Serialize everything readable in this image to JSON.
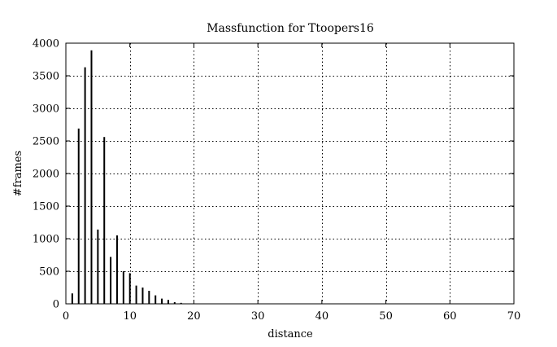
{
  "chart_data": {
    "type": "bar",
    "title": "Massfunction for Ttoopers16",
    "xlabel": "distance",
    "ylabel": "#frames",
    "xlim": [
      0,
      70
    ],
    "ylim": [
      0,
      4000
    ],
    "xticks": [
      0,
      10,
      20,
      30,
      40,
      50,
      60,
      70
    ],
    "yticks": [
      0,
      500,
      1000,
      1500,
      2000,
      2500,
      3000,
      3500,
      4000
    ],
    "grid": true,
    "legend": "none",
    "bar_color": "#000000",
    "points": [
      {
        "x": 1,
        "y": 160
      },
      {
        "x": 2,
        "y": 2690
      },
      {
        "x": 3,
        "y": 3630
      },
      {
        "x": 4,
        "y": 3890
      },
      {
        "x": 5,
        "y": 1140
      },
      {
        "x": 6,
        "y": 2560
      },
      {
        "x": 7,
        "y": 720
      },
      {
        "x": 8,
        "y": 1050
      },
      {
        "x": 9,
        "y": 500
      },
      {
        "x": 10,
        "y": 470
      },
      {
        "x": 11,
        "y": 280
      },
      {
        "x": 12,
        "y": 250
      },
      {
        "x": 13,
        "y": 200
      },
      {
        "x": 14,
        "y": 130
      },
      {
        "x": 15,
        "y": 80
      },
      {
        "x": 16,
        "y": 60
      },
      {
        "x": 17,
        "y": 25
      },
      {
        "x": 18,
        "y": 15
      },
      {
        "x": 19,
        "y": 5
      }
    ]
  }
}
